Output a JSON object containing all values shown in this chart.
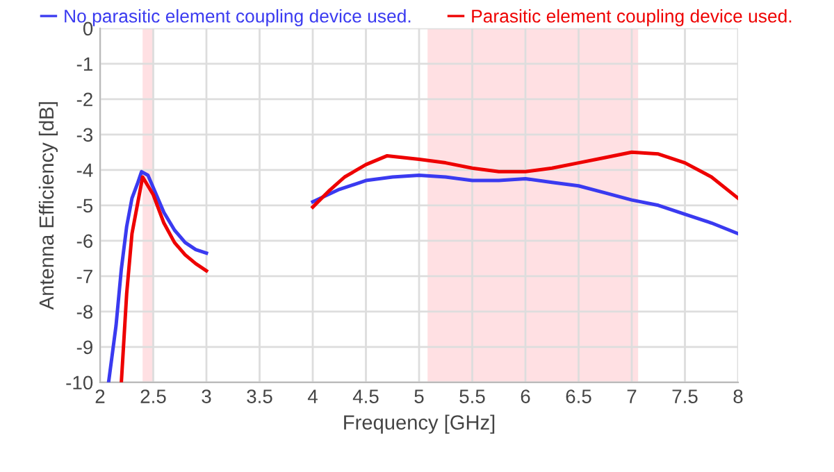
{
  "chart_data": {
    "type": "line",
    "xlabel": "Frequency [GHz]",
    "ylabel": "Antenna Efficiency [dB]",
    "series": [
      {
        "name": "No parasitic element coupling device used.",
        "color": "#3a3af0",
        "x": [
          2.08,
          2.15,
          2.2,
          2.25,
          2.3,
          2.35,
          2.39,
          2.45,
          2.5,
          2.6,
          2.7,
          2.8,
          2.9,
          3.0,
          3.5,
          4.0,
          4.25,
          4.5,
          4.75,
          5.0,
          5.25,
          5.5,
          5.75,
          6.0,
          6.25,
          6.5,
          6.75,
          7.0,
          7.25,
          7.5,
          7.75,
          8.0
        ],
        "values": [
          -10,
          -8.4,
          -6.8,
          -5.6,
          -4.8,
          -4.4,
          -4.05,
          -4.15,
          -4.5,
          -5.2,
          -5.7,
          -6.05,
          -6.25,
          -6.35,
          null,
          -4.9,
          -4.55,
          -4.3,
          -4.2,
          -4.15,
          -4.2,
          -4.3,
          -4.3,
          -4.25,
          -4.35,
          -4.45,
          -4.65,
          -4.85,
          -5.0,
          -5.25,
          -5.5,
          -5.8
        ]
      },
      {
        "name": "Parasitic element coupling device used.",
        "color": "#ee0000",
        "x": [
          2.2,
          2.25,
          2.3,
          2.35,
          2.4,
          2.45,
          2.5,
          2.6,
          2.7,
          2.8,
          2.9,
          3.0,
          3.5,
          4.0,
          4.15,
          4.3,
          4.5,
          4.7,
          5.0,
          5.25,
          5.5,
          5.75,
          6.0,
          6.25,
          6.5,
          6.75,
          7.0,
          7.25,
          7.5,
          7.75,
          8.0
        ],
        "values": [
          -10,
          -7.5,
          -5.8,
          -5.0,
          -4.2,
          -4.45,
          -4.7,
          -5.5,
          -6.05,
          -6.4,
          -6.65,
          -6.85,
          null,
          -5.05,
          -4.6,
          -4.2,
          -3.85,
          -3.6,
          -3.7,
          -3.8,
          -3.95,
          -4.05,
          -4.05,
          -3.95,
          -3.8,
          -3.65,
          -3.5,
          -3.55,
          -3.8,
          -4.2,
          -4.8
        ]
      }
    ],
    "bands": [
      {
        "axis": "x",
        "from": 2.4,
        "to": 2.5,
        "color": "#ffe0e3"
      },
      {
        "axis": "x",
        "from": 5.08,
        "to": 7.06,
        "color": "#ffe0e3"
      }
    ],
    "xlim": [
      2,
      8
    ],
    "xticks": [
      2,
      2.5,
      3,
      3.5,
      4,
      4.5,
      5,
      5.5,
      6,
      6.5,
      7,
      7.5,
      8
    ],
    "ylim": [
      -10,
      0
    ],
    "yticks": [
      -10,
      -9,
      -8,
      -7,
      -6,
      -5,
      -4,
      -3,
      -2,
      -1,
      0
    ],
    "grid": true,
    "legend": "top",
    "line_style": "solid",
    "marker": "none"
  }
}
